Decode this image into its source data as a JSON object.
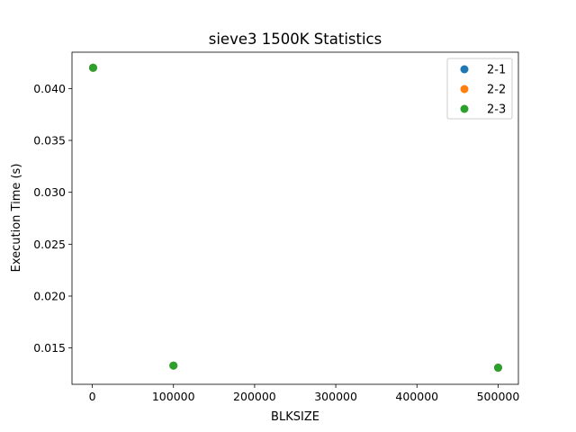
{
  "chart_data": {
    "type": "scatter",
    "title": "sieve3 1500K Statistics",
    "xlabel": "BLKSIZE",
    "ylabel": "Execution Time (s)",
    "xlim": [
      -25000,
      525000
    ],
    "ylim": [
      0.0115,
      0.0435
    ],
    "xticks": [
      0,
      100000,
      200000,
      300000,
      400000,
      500000
    ],
    "xtick_labels": [
      "0",
      "100000",
      "200000",
      "300000",
      "400000",
      "500000"
    ],
    "yticks": [
      0.015,
      0.02,
      0.025,
      0.03,
      0.035,
      0.04
    ],
    "ytick_labels": [
      "0.015",
      "0.020",
      "0.025",
      "0.030",
      "0.035",
      "0.040"
    ],
    "grid": false,
    "legend_position": "top-right",
    "series": [
      {
        "name": "2-1",
        "color": "#1f77b4",
        "x": [
          1000,
          100000,
          500000
        ],
        "y": [
          0.042,
          0.0133,
          0.0131
        ]
      },
      {
        "name": "2-2",
        "color": "#ff7f0e",
        "x": [
          1000,
          100000,
          500000
        ],
        "y": [
          0.042,
          0.0133,
          0.0131
        ]
      },
      {
        "name": "2-3",
        "color": "#2ca02c",
        "x": [
          1000,
          100000,
          500000
        ],
        "y": [
          0.042,
          0.0133,
          0.0131
        ]
      }
    ]
  }
}
